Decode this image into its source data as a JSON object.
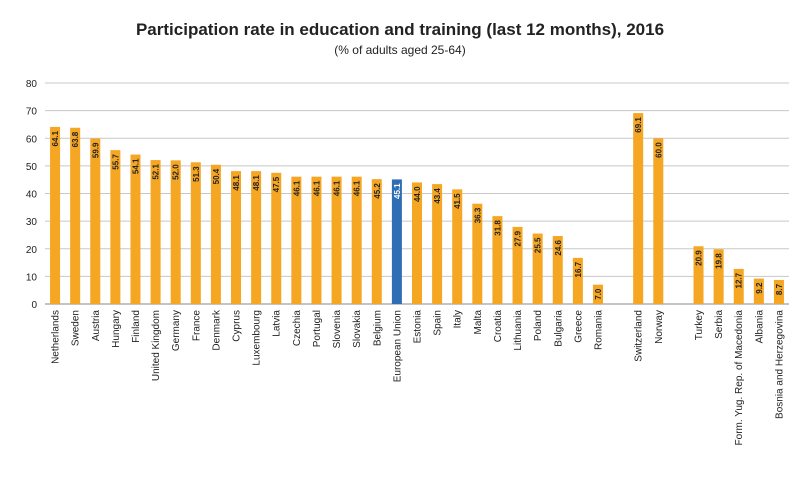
{
  "chart_data": {
    "type": "bar",
    "title": "Participation rate in education and training (last 12 months), 2016",
    "subtitle": "(% of adults aged 25-64)",
    "categories": [
      "Netherlands",
      "Sweden",
      "Austria",
      "Hungary",
      "Finland",
      "United Kingdom",
      "Germany",
      "France",
      "Denmark",
      "Cyprus",
      "Luxembourg",
      "Latvia",
      "Czechia",
      "Portugal",
      "Slovenia",
      "Slovakia",
      "Belgium",
      "European Union",
      "Estonia",
      "Spain",
      "Italy",
      "Malta",
      "Croatia",
      "Lithuania",
      "Poland",
      "Bulgaria",
      "Greece",
      "Romania",
      null,
      "Switzerland",
      "Norway",
      null,
      "Turkey",
      "Serbia",
      "Form. Yug. Rep. of Macedonia",
      "Albania",
      "Bosnia and Herzegovina"
    ],
    "values": [
      64.1,
      63.8,
      59.9,
      55.7,
      54.1,
      52.1,
      52.0,
      51.3,
      50.4,
      48.1,
      48.1,
      47.5,
      46.1,
      46.1,
      46.1,
      46.1,
      45.2,
      45.1,
      44.0,
      43.4,
      41.5,
      36.3,
      31.8,
      27.9,
      25.5,
      24.6,
      16.7,
      7.0,
      null,
      69.1,
      60.0,
      null,
      20.9,
      19.8,
      12.7,
      9.2,
      8.7
    ],
    "value_labels": [
      "64.1",
      "63.8",
      "59.9",
      "55.7",
      "54.1",
      "52.1",
      "52.0",
      "51.3",
      "50.4",
      "48.1",
      "48.1",
      "47.5",
      "46.1",
      "46.1",
      "46.1",
      "46.1",
      "45.2",
      "45.1",
      "44.0",
      "43.4",
      "41.5",
      "36.3",
      "31.8",
      "27.9",
      "25.5",
      "24.6",
      "16.7",
      "7.0",
      null,
      "69.1",
      "60.0",
      null,
      "20.9",
      "19.8",
      "12.7",
      "9.2",
      "8.7"
    ],
    "colors": [
      "#f5a623",
      "#f5a623",
      "#f5a623",
      "#f5a623",
      "#f5a623",
      "#f5a623",
      "#f5a623",
      "#f5a623",
      "#f5a623",
      "#f5a623",
      "#f5a623",
      "#f5a623",
      "#f5a623",
      "#f5a623",
      "#f5a623",
      "#f5a623",
      "#f5a623",
      "#2f6db5",
      "#f5a623",
      "#f5a623",
      "#f5a623",
      "#f5a623",
      "#f5a623",
      "#f5a623",
      "#f5a623",
      "#f5a623",
      "#f5a623",
      "#f5a623",
      null,
      "#f5a623",
      "#f5a623",
      null,
      "#f5a623",
      "#f5a623",
      "#f5a623",
      "#f5a623",
      "#f5a623"
    ],
    "ylim": [
      0,
      80
    ],
    "yticks": [
      0,
      10,
      20,
      30,
      40,
      50,
      60,
      70,
      80
    ],
    "grid": true
  }
}
